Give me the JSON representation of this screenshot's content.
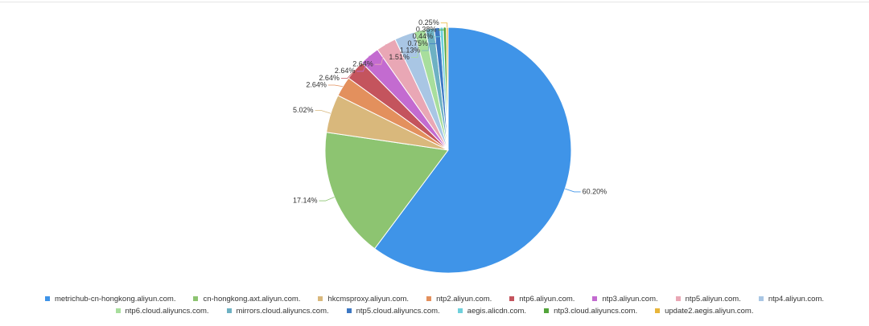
{
  "chart_data": {
    "type": "pie",
    "categories": [
      "metrichub-cn-hongkong.aliyun.com.",
      "cn-hongkong.axt.aliyun.com.",
      "hkcmsproxy.aliyun.com.",
      "ntp2.aliyun.com.",
      "ntp6.aliyun.com.",
      "ntp3.aliyun.com.",
      "ntp5.aliyun.com.",
      "ntp4.aliyun.com.",
      "ntp6.cloud.aliyuncs.com.",
      "mirrors.cloud.aliyuncs.com.",
      "ntp5.cloud.aliyuncs.com.",
      "aegis.alicdn.com.",
      "ntp3.cloud.aliyuncs.com.",
      "update2.aegis.aliyun.com."
    ],
    "values": [
      60.2,
      17.14,
      5.02,
      2.64,
      2.64,
      2.64,
      2.64,
      2.64,
      1.51,
      1.13,
      0.75,
      0.44,
      0.38,
      0.25
    ],
    "value_labels": [
      "60.20%",
      "17.14%",
      "5.02%",
      "2.64%",
      "2.64%",
      "2.64%",
      "2.64%",
      null,
      "1.51%",
      "1.13%",
      "0.75%",
      "0.44%",
      "0.38%",
      "0.25%"
    ],
    "colors": [
      "#3f94e8",
      "#8dc471",
      "#d9b87c",
      "#e3905d",
      "#c4545d",
      "#c36bd0",
      "#e9a7b5",
      "#a9c6e4",
      "#a8de9d",
      "#6eb1c3",
      "#3d78c3",
      "#6fd0dc",
      "#53a43a",
      "#e8b53a"
    ],
    "legend": "bottom"
  }
}
